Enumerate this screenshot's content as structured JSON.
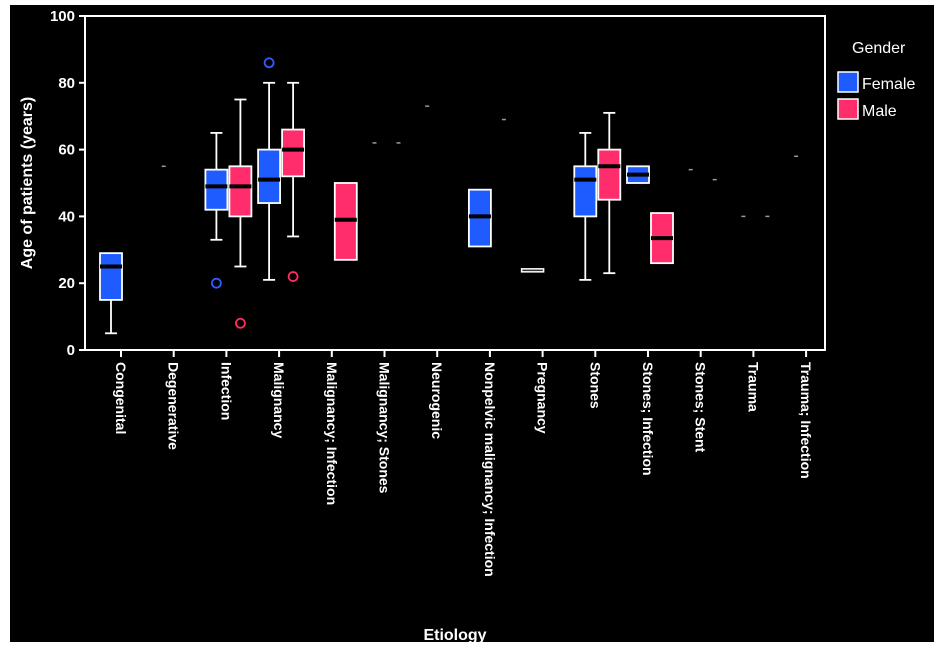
{
  "chart_data": {
    "type": "boxplot",
    "xlabel": "Etiology",
    "ylabel": "Age of patients (years)",
    "ylim": [
      0,
      100
    ],
    "yticks": [
      0,
      20,
      40,
      60,
      80,
      100
    ],
    "grid": false,
    "legend": {
      "title": "Gender",
      "placement": "right",
      "entries": [
        {
          "name": "Female",
          "color": "#1f5cff"
        },
        {
          "name": "Male",
          "color": "#ff2d6b"
        }
      ]
    },
    "categories": [
      "Congenital",
      "Degenerative",
      "Infection",
      "Malignancy",
      "Malignancy; Infection",
      "Malignancy; Stones",
      "Neurogenic",
      "Nonpelvic malignancy; Infection",
      "Pregnancy",
      "Stones",
      "Stones; Infection",
      "Stones; Stent",
      "Trauma",
      "Trauma; Infection"
    ],
    "series": [
      {
        "name": "Female",
        "color": "#1f5cff",
        "boxes": [
          {
            "category": "Congenital",
            "min": 5,
            "q1": 15,
            "median": 25,
            "q3": 29,
            "max": 29,
            "outliers": []
          },
          {
            "category": "Degenerative",
            "single": 55
          },
          {
            "category": "Infection",
            "min": 33,
            "q1": 42,
            "median": 49,
            "q3": 54,
            "max": 65,
            "outliers": [
              20
            ]
          },
          {
            "category": "Malignancy",
            "min": 21,
            "q1": 44,
            "median": 51,
            "q3": 60,
            "max": 80,
            "outliers": [
              86
            ]
          },
          {
            "category": "Malignancy; Stones",
            "single": 62
          },
          {
            "category": "Neurogenic",
            "single": 73
          },
          {
            "category": "Nonpelvic malignancy; Infection",
            "min": 31,
            "q1": 31,
            "median": 40,
            "q3": 48,
            "max": 48,
            "outliers": []
          },
          {
            "category": "Pregnancy",
            "min": 24,
            "q1": 24,
            "median": 24,
            "q3": 24,
            "max": 24,
            "outliers": []
          },
          {
            "category": "Stones",
            "min": 21,
            "q1": 40,
            "median": 51,
            "q3": 55,
            "max": 65,
            "outliers": []
          },
          {
            "category": "Stones; Infection",
            "min": 50,
            "q1": 50,
            "median": 52.5,
            "q3": 55,
            "max": 55,
            "outliers": []
          },
          {
            "category": "Stones; Stent",
            "single": 54
          },
          {
            "category": "Trauma",
            "single": 40
          },
          {
            "category": "Trauma; Infection",
            "single": 58
          }
        ]
      },
      {
        "name": "Male",
        "color": "#ff2d6b",
        "boxes": [
          {
            "category": "Infection",
            "min": 25,
            "q1": 40,
            "median": 49,
            "q3": 55,
            "max": 75,
            "outliers": [
              8
            ]
          },
          {
            "category": "Malignancy",
            "min": 34,
            "q1": 52,
            "median": 60,
            "q3": 66,
            "max": 80,
            "outliers": [
              22
            ]
          },
          {
            "category": "Malignancy; Infection",
            "min": 27,
            "q1": 27,
            "median": 39,
            "q3": 50,
            "max": 50,
            "outliers": []
          },
          {
            "category": "Malignancy; Stones",
            "single": 62
          },
          {
            "category": "Nonpelvic malignancy; Infection",
            "single": 69
          },
          {
            "category": "Stones",
            "min": 23,
            "q1": 45,
            "median": 55,
            "q3": 60,
            "max": 71,
            "outliers": []
          },
          {
            "category": "Stones; Infection",
            "min": 26,
            "q1": 26,
            "median": 33.5,
            "q3": 41,
            "max": 41,
            "outliers": []
          },
          {
            "category": "Stones; Stent",
            "single": 51
          },
          {
            "category": "Trauma",
            "single": 40
          }
        ]
      }
    ]
  }
}
